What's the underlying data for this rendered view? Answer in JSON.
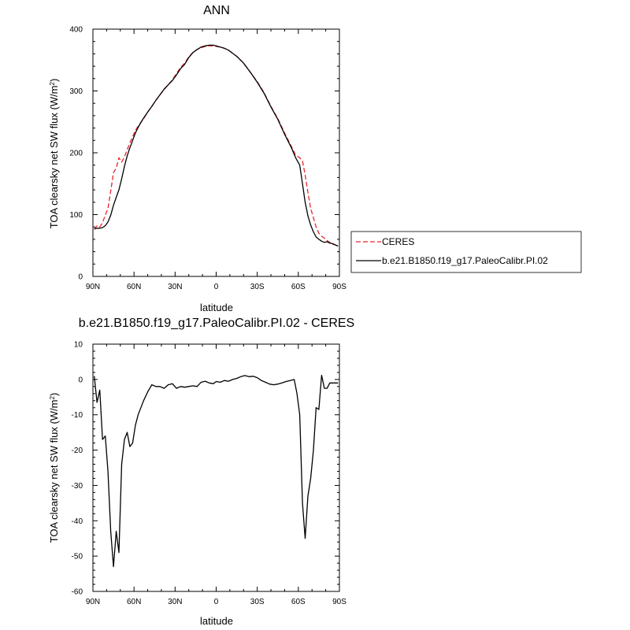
{
  "chart_data": [
    {
      "type": "line",
      "title": "ANN",
      "xlabel": "latitude",
      "ylabel": "TOA clearsky net SW flux (W/m",
      "ylabel_sup": "2",
      "ylabel_close": ")",
      "xlim": [
        90,
        -90
      ],
      "ylim": [
        0,
        400
      ],
      "x_ticks": [
        90,
        60,
        30,
        0,
        -30,
        -60,
        -90
      ],
      "x_tick_labels": [
        "90N",
        "60N",
        "30N",
        "0",
        "30S",
        "60S",
        "90S"
      ],
      "y_ticks": [
        0,
        100,
        200,
        300,
        400
      ],
      "y_tick_labels": [
        "0",
        "100",
        "200",
        "300",
        "400"
      ],
      "grid": false,
      "legend": {
        "position": "right",
        "entries": [
          "CERES",
          "b.e21.B1850.f19_g17.PaleoCalibr.PI.02"
        ]
      },
      "series": [
        {
          "name": "CERES",
          "color": "#e8262b",
          "style": "dashed",
          "x": [
            89,
            87,
            85,
            83,
            81,
            79,
            77,
            75,
            73,
            71,
            69,
            67,
            65,
            63,
            61,
            59,
            57,
            55,
            53,
            50,
            47,
            44,
            41,
            38,
            35,
            32,
            29,
            26,
            23,
            20,
            17,
            14,
            11,
            8,
            5,
            2,
            0,
            -3,
            -6,
            -9,
            -12,
            -15,
            -20,
            -25,
            -30,
            -35,
            -40,
            -45,
            -50,
            -55,
            -58,
            -61,
            -63,
            -65,
            -67,
            -69,
            -71,
            -73,
            -75,
            -77,
            -79,
            -81,
            -83,
            -85,
            -87,
            -89
          ],
          "y": [
            76,
            82,
            80,
            87,
            99,
            110,
            138,
            168,
            175,
            192,
            185,
            193,
            205,
            216,
            226,
            236,
            243,
            249,
            255,
            266,
            275,
            285,
            294,
            302,
            310,
            318,
            328,
            338,
            345,
            355,
            362,
            367,
            370,
            372,
            373,
            373,
            372,
            371,
            369,
            366,
            361,
            356,
            345,
            330,
            315,
            297,
            275,
            255,
            232,
            210,
            196,
            192,
            187,
            164,
            136,
            110,
            95,
            80,
            70,
            65,
            62,
            58,
            55,
            52,
            51,
            49
          ]
        },
        {
          "name": "b.e21.B1850.f19_g17.PaleoCalibr.PI.02",
          "color": "#000000",
          "style": "solid",
          "x": [
            89,
            87,
            85,
            83,
            81,
            79,
            77,
            75,
            73,
            71,
            69,
            67,
            65,
            63,
            61,
            59,
            57,
            55,
            53,
            50,
            47,
            44,
            41,
            38,
            35,
            32,
            29,
            26,
            23,
            20,
            17,
            14,
            11,
            8,
            5,
            2,
            0,
            -3,
            -6,
            -9,
            -12,
            -15,
            -20,
            -25,
            -30,
            -35,
            -40,
            -45,
            -50,
            -55,
            -58,
            -61,
            -63,
            -65,
            -67,
            -69,
            -71,
            -73,
            -75,
            -77,
            -79,
            -81,
            -83,
            -85,
            -87,
            -89
          ],
          "y": [
            77,
            78,
            78,
            79,
            82,
            88,
            99,
            115,
            128,
            140,
            158,
            178,
            195,
            208,
            220,
            232,
            241,
            249,
            256,
            266,
            275,
            285,
            294,
            303,
            310,
            317,
            326,
            336,
            343,
            354,
            362,
            367,
            371,
            373,
            374,
            374,
            373,
            371,
            369,
            366,
            361,
            356,
            345,
            330,
            314,
            296,
            274,
            254,
            230,
            208,
            192,
            180,
            150,
            120,
            98,
            83,
            72,
            64,
            60,
            57,
            55,
            56,
            54,
            53,
            51,
            49
          ]
        }
      ]
    },
    {
      "type": "line",
      "title": "b.e21.B1850.f19_g17.PaleoCalibr.PI.02 - CERES",
      "xlabel": "latitude",
      "ylabel": "TOA clearsky net SW flux (W/m",
      "ylabel_sup": "2",
      "ylabel_close": ")",
      "xlim": [
        90,
        -90
      ],
      "ylim": [
        -60,
        10
      ],
      "x_ticks": [
        90,
        60,
        30,
        0,
        -30,
        -60,
        -90
      ],
      "x_tick_labels": [
        "90N",
        "60N",
        "30N",
        "0",
        "30S",
        "60S",
        "90S"
      ],
      "y_ticks": [
        -60,
        -50,
        -40,
        -30,
        -20,
        -10,
        0,
        10
      ],
      "y_tick_labels": [
        "-60",
        "-50",
        "-40",
        "-30",
        "-20",
        "-10",
        "0",
        "10"
      ],
      "grid": false,
      "series": [
        {
          "name": "",
          "color": "#000000",
          "style": "solid",
          "x": [
            89,
            87,
            85,
            83,
            81,
            79,
            77,
            75,
            73,
            71,
            69,
            67,
            65,
            63,
            61,
            59,
            57,
            55,
            53,
            50,
            47,
            44,
            41,
            38,
            35,
            32,
            29,
            26,
            23,
            20,
            17,
            14,
            11,
            8,
            5,
            2,
            0,
            -3,
            -6,
            -9,
            -12,
            -15,
            -18,
            -21,
            -24,
            -27,
            -30,
            -33,
            -36,
            -39,
            -42,
            -45,
            -48,
            -51,
            -54,
            -57,
            -59,
            -61,
            -63,
            -65,
            -67,
            -69,
            -71,
            -73,
            -75,
            -77,
            -79,
            -81,
            -83,
            -85,
            -87,
            -89
          ],
          "y": [
            1,
            -6.5,
            -3,
            -17,
            -16,
            -26,
            -43,
            -53,
            -43,
            -49,
            -24,
            -17,
            -15,
            -19,
            -18,
            -13,
            -10,
            -8,
            -6,
            -3.5,
            -1.5,
            -2,
            -2,
            -2.5,
            -1.5,
            -1.2,
            -2.5,
            -2,
            -2.2,
            -2,
            -1.8,
            -2,
            -0.8,
            -0.5,
            -1,
            -1.2,
            -0.6,
            -0.8,
            -0.3,
            -0.5,
            0,
            0.3,
            0.8,
            1.1,
            0.8,
            0.9,
            0.5,
            -0.3,
            -0.8,
            -1.3,
            -1.5,
            -1.3,
            -1.0,
            -0.6,
            -0.3,
            0,
            -4,
            -10,
            -35,
            -45,
            -33,
            -28,
            -20,
            -8,
            -8.5,
            1.2,
            -2.5,
            -2.5,
            -1,
            -1,
            -1,
            -1
          ]
        }
      ]
    }
  ]
}
